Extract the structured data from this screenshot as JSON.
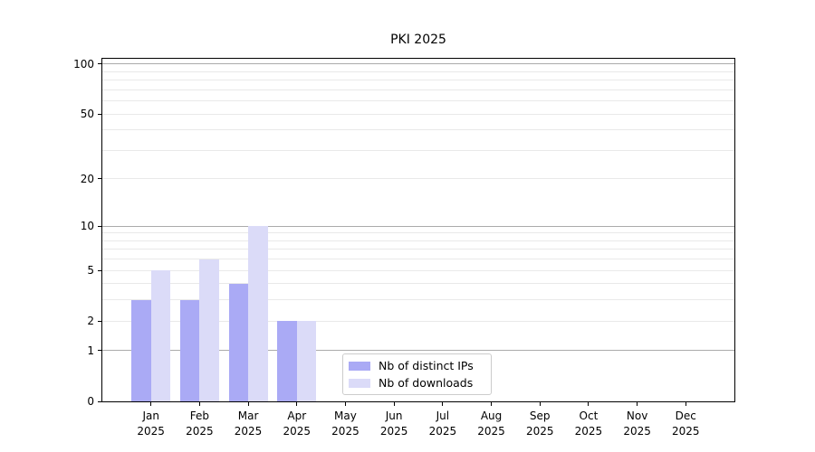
{
  "title": "PKI 2025",
  "colors": {
    "ips_bar": "#aaaaf5",
    "downloads_bar": "#dbdbf8",
    "grid_major": "#ababab",
    "grid_minor": "#e9e9e9",
    "axis": "#000000",
    "legend_border": "#cccccc",
    "background": "#ffffff"
  },
  "chart_data": {
    "type": "bar",
    "title": "PKI 2025",
    "categories": [
      "Jan 2025",
      "Feb 2025",
      "Mar 2025",
      "Apr 2025",
      "May 2025",
      "Jun 2025",
      "Jul 2025",
      "Aug 2025",
      "Sep 2025",
      "Oct 2025",
      "Nov 2025",
      "Dec 2025"
    ],
    "x_tick_line1": [
      "Jan",
      "Feb",
      "Mar",
      "Apr",
      "May",
      "Jun",
      "Jul",
      "Aug",
      "Sep",
      "Oct",
      "Nov",
      "Dec"
    ],
    "x_tick_line2": [
      "2025",
      "2025",
      "2025",
      "2025",
      "2025",
      "2025",
      "2025",
      "2025",
      "2025",
      "2025",
      "2025",
      "2025"
    ],
    "series": [
      {
        "name": "Nb of distinct IPs",
        "color": "#aaaaf5",
        "values": [
          3,
          3,
          4,
          2,
          0,
          0,
          0,
          0,
          0,
          0,
          0,
          0
        ]
      },
      {
        "name": "Nb of downloads",
        "color": "#dbdbf8",
        "values": [
          5,
          6,
          10,
          2,
          0,
          0,
          0,
          0,
          0,
          0,
          0,
          0
        ]
      }
    ],
    "xlabel": "",
    "ylabel": "",
    "yscale": "log1p",
    "ylim": [
      0,
      107.6
    ],
    "y_tick_values": [
      0,
      1,
      2,
      5,
      10,
      20,
      50,
      100
    ],
    "y_tick_labels": [
      "0",
      "1",
      "2",
      "5",
      "10",
      "20",
      "50",
      "100"
    ],
    "y_major_grid_values": [
      1,
      10,
      100
    ],
    "y_minor_grid_values": [
      2,
      3,
      4,
      5,
      6,
      7,
      8,
      9,
      20,
      30,
      40,
      50,
      60,
      70,
      80,
      90
    ],
    "grid": true,
    "legend_position": "lower center"
  },
  "legend": {
    "items": [
      {
        "label": "Nb of distinct IPs",
        "color": "#aaaaf5"
      },
      {
        "label": "Nb of downloads",
        "color": "#dbdbf8"
      }
    ]
  }
}
